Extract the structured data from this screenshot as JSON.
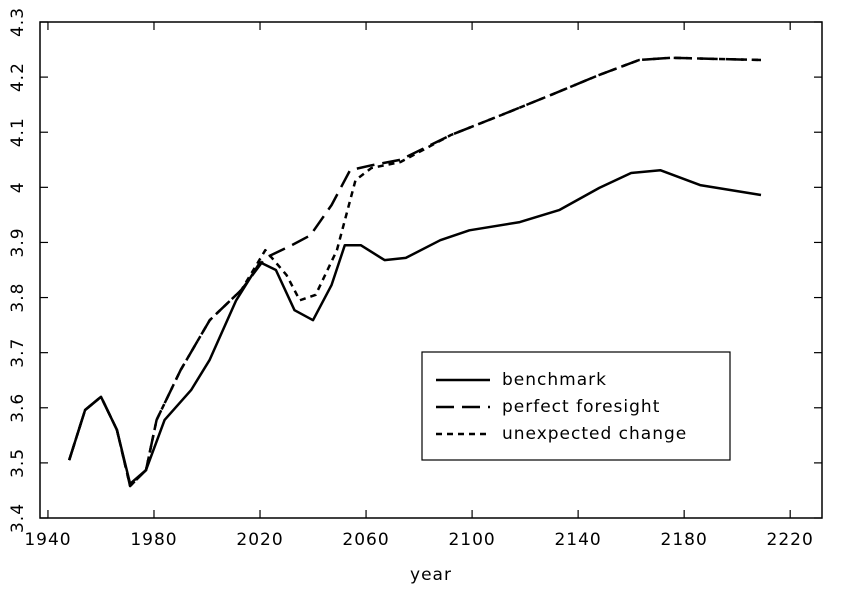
{
  "chart_data": {
    "type": "line",
    "xlabel": "year",
    "xlim": [
      1937,
      2232
    ],
    "xticks": [
      1940,
      1980,
      2020,
      2060,
      2100,
      2140,
      2180,
      2220
    ],
    "ylim": [
      3.4,
      4.3
    ],
    "yticks": [
      3.4,
      3.5,
      3.6,
      3.7,
      3.8,
      3.9,
      4.0,
      4.1,
      4.2,
      4.3
    ],
    "legend": "lower right",
    "series": [
      {
        "name": "benchmark",
        "color": "#000000",
        "style": "solid",
        "x": [
          1948,
          1954,
          1960,
          1966,
          1971,
          1977,
          1984,
          1994,
          2001,
          2011,
          2020,
          2026,
          2033,
          2040,
          2047,
          2052,
          2058,
          2067,
          2075,
          2088,
          2099,
          2118,
          2133,
          2148,
          2160,
          2171,
          2186,
          2209
        ],
        "values": [
          3.505,
          3.596,
          3.62,
          3.56,
          3.462,
          3.487,
          3.578,
          3.632,
          3.687,
          3.795,
          3.864,
          3.85,
          3.777,
          3.759,
          3.823,
          3.895,
          3.895,
          3.868,
          3.872,
          3.904,
          3.922,
          3.937,
          3.959,
          3.999,
          4.026,
          4.031,
          4.004,
          3.986
        ]
      },
      {
        "name": "perfect foresight",
        "color": "#000000",
        "style": "dashed",
        "x": [
          1948,
          1954,
          1960,
          1966,
          1971,
          1977,
          1981,
          1990,
          2001,
          2013,
          2022,
          2032,
          2039,
          2047,
          2054,
          2062,
          2073,
          2092,
          2111,
          2130,
          2148,
          2163,
          2175,
          2209
        ],
        "values": [
          3.505,
          3.596,
          3.62,
          3.56,
          3.458,
          3.487,
          3.578,
          3.668,
          3.759,
          3.814,
          3.872,
          3.895,
          3.913,
          3.968,
          4.031,
          4.04,
          4.05,
          4.095,
          4.131,
          4.168,
          4.204,
          4.231,
          4.235,
          4.231
        ]
      },
      {
        "name": "unexpected change",
        "color": "#000000",
        "style": "dotted",
        "x": [
          1948,
          1954,
          1960,
          1966,
          1971,
          1977,
          1981,
          1990,
          2001,
          2013,
          2022,
          2030,
          2035,
          2041,
          2049,
          2056,
          2062,
          2073,
          2092,
          2111,
          2130,
          2148,
          2163,
          2175,
          2209
        ],
        "values": [
          3.505,
          3.596,
          3.62,
          3.56,
          3.458,
          3.487,
          3.578,
          3.668,
          3.759,
          3.814,
          3.886,
          3.841,
          3.795,
          3.805,
          3.886,
          4.013,
          4.035,
          4.046,
          4.095,
          4.131,
          4.168,
          4.204,
          4.231,
          4.235,
          4.231
        ]
      }
    ]
  }
}
